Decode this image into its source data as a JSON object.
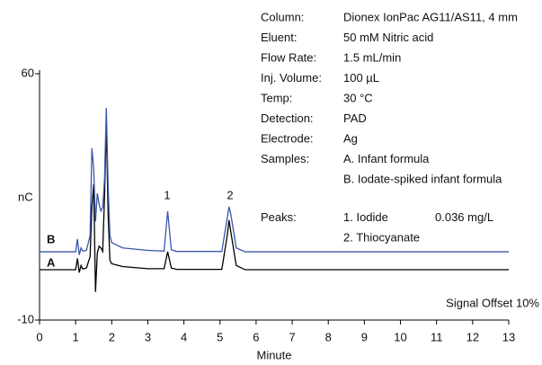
{
  "chart_data": {
    "type": "line",
    "x_label": "Minute",
    "y_label": "nC",
    "xlim": [
      0,
      13
    ],
    "xticks": [
      0,
      1,
      2,
      3,
      4,
      5,
      6,
      7,
      8,
      9,
      10,
      11,
      12,
      13
    ],
    "ylim": [
      -10,
      60
    ],
    "yticks": [
      60,
      -10
    ],
    "annotations": {
      "signal_offset": "Signal Offset 10%",
      "peak_1": "1",
      "peak_2": "2"
    },
    "series": [
      {
        "name": "A",
        "color": "#000000",
        "x": [
          0,
          1.0,
          1.05,
          1.1,
          1.15,
          1.2,
          1.3,
          1.4,
          1.45,
          1.5,
          1.55,
          1.6,
          1.65,
          1.7,
          1.75,
          1.8,
          1.85,
          1.9,
          1.95,
          2.0,
          2.3,
          3.0,
          3.45,
          3.55,
          3.65,
          3.8,
          5.05,
          5.2,
          5.25,
          5.3,
          5.45,
          5.7,
          13
        ],
        "values": [
          4.3,
          4.3,
          7.5,
          3.5,
          5.5,
          4.5,
          4.8,
          8,
          22,
          28.6,
          -2,
          9,
          11,
          10.5,
          9.5,
          25,
          46,
          20,
          7,
          6,
          5.2,
          4.6,
          4.6,
          9.4,
          4.8,
          4.4,
          4.4,
          14,
          18.4,
          15,
          5.5,
          4.3,
          4.3
        ]
      },
      {
        "name": "B",
        "color": "#3a56a8",
        "x": [
          0,
          1.0,
          1.05,
          1.1,
          1.15,
          1.2,
          1.3,
          1.4,
          1.45,
          1.5,
          1.55,
          1.6,
          1.65,
          1.7,
          1.75,
          1.8,
          1.85,
          1.9,
          1.95,
          2.0,
          2.3,
          3.0,
          3.45,
          3.55,
          3.65,
          3.8,
          5.05,
          5.2,
          5.25,
          5.3,
          5.45,
          5.7,
          13
        ],
        "values": [
          9.4,
          9.4,
          13,
          8.5,
          10.5,
          9.6,
          9.8,
          14,
          38.8,
          33,
          18,
          26,
          23,
          21,
          22,
          30,
          50.3,
          28,
          14,
          12,
          10.5,
          9.8,
          9.6,
          20.9,
          10,
          9.5,
          9.5,
          19,
          22.2,
          20,
          10.5,
          9.4,
          9.4
        ]
      }
    ],
    "conditions": [
      {
        "label": "Column:",
        "lines": [
          "Dionex IonPac AG11/AS11, 4 mm"
        ]
      },
      {
        "label": "Eluent:",
        "lines": [
          "50 mM Nitric acid"
        ]
      },
      {
        "label": "Flow Rate:",
        "lines": [
          "1.5 mL/min"
        ]
      },
      {
        "label": "Inj. Volume:",
        "lines": [
          "100 µL"
        ]
      },
      {
        "label": "Temp:",
        "lines": [
          "30 °C"
        ]
      },
      {
        "label": "Detection:",
        "lines": [
          "PAD"
        ]
      },
      {
        "label": "Electrode:",
        "lines": [
          "Ag"
        ]
      },
      {
        "label": "Samples:",
        "lines": [
          "A. Infant formula",
          "B. Iodate-spiked infant formula"
        ]
      }
    ],
    "peaks": {
      "label": "Peaks:",
      "lines": [
        "1. Iodide",
        "2. Thiocyanate"
      ],
      "amount": "0.036 mg/L"
    }
  }
}
